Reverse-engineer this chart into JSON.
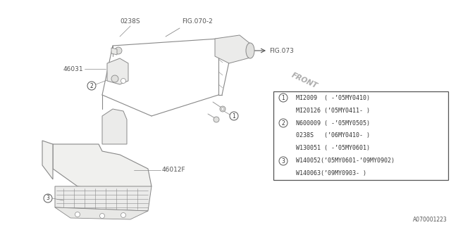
{
  "bg_color": "#ffffff",
  "line_color": "#888888",
  "dark_line": "#555555",
  "title_code": "A070001223",
  "fig_refs": [
    "FIG.070-2",
    "FIG.073"
  ],
  "part_labels": [
    "0238S",
    "46031",
    "46012F"
  ],
  "front_label": "FRONT",
  "font_size_label": 6.5,
  "font_size_table": 6.0,
  "font_size_ref": 6.5,
  "table_rows": [
    [
      1,
      "MI2009  ( -’05MY0410)"
    ],
    [
      0,
      "MI20126 (’05MY0411- )"
    ],
    [
      2,
      "N600009 ( -’05MY0505)"
    ],
    [
      0,
      "0238S   (’06MY0410- )"
    ],
    [
      0,
      "W130051 ( -’05MY0601)"
    ],
    [
      3,
      "W140052(’05MY0601-’09MY0902)"
    ],
    [
      0,
      "W140063(’09MY0903- )"
    ]
  ]
}
